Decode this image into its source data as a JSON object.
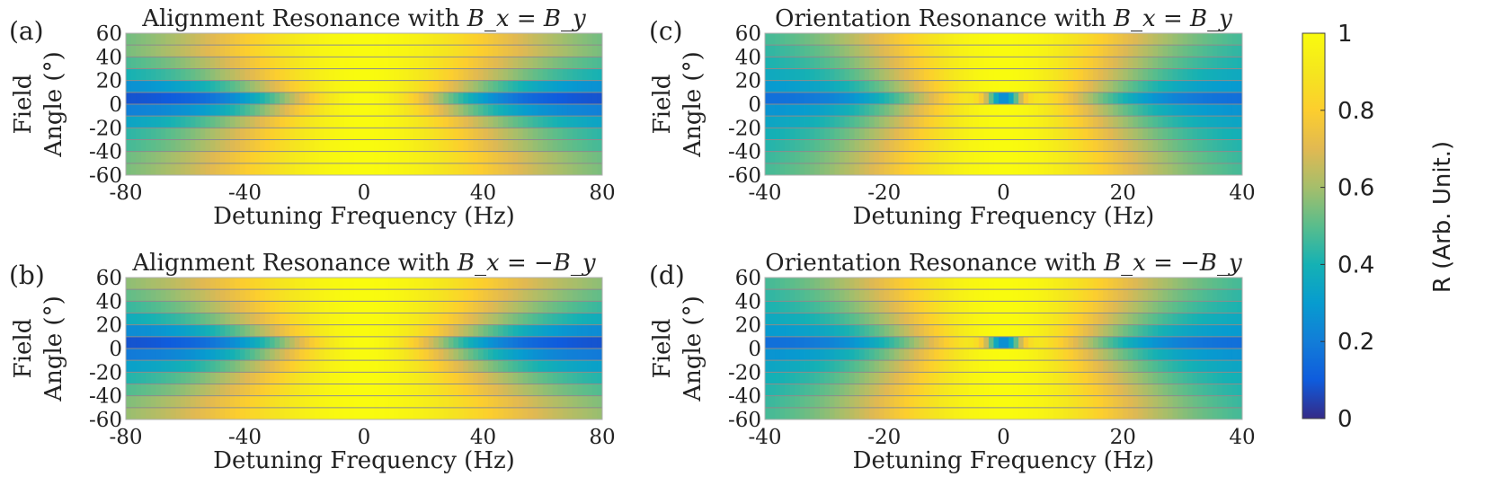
{
  "colorbar": {
    "label": "R (Arb. Unit.)",
    "ticks": [
      0,
      0.2,
      0.4,
      0.6,
      0.8,
      1
    ],
    "tick_labels": [
      "0",
      "0.2",
      "0.4",
      "0.6",
      "0.8",
      "1"
    ],
    "range": [
      0,
      1
    ]
  },
  "chart_data": [
    {
      "type": "heatmap",
      "panel_label": "(a)",
      "title_prefix": "Alignment Resonance with ",
      "title_math": "B_x = B_y",
      "xlabel": "Detuning Frequency (Hz)",
      "ylabel_line1": "Field",
      "ylabel_line2": "Angle (°)",
      "xlim": [
        -80,
        80
      ],
      "ylim": [
        -60,
        60
      ],
      "xticks": [
        -80,
        -40,
        0,
        40,
        80
      ],
      "xtick_labels": [
        "-80",
        "-40",
        "0",
        "40",
        "80"
      ],
      "yticks": [
        60,
        40,
        20,
        0,
        -20,
        -40,
        -60
      ],
      "ytick_labels": [
        "60",
        "40",
        "20",
        "0",
        "-20",
        "-40",
        "-60"
      ],
      "angles": [
        55,
        45,
        35,
        25,
        15,
        5,
        -5,
        -15,
        -25,
        -35,
        -45,
        -55
      ],
      "row_width_hz": [
        40,
        42,
        37,
        34,
        30,
        24,
        27,
        33,
        36,
        36,
        40,
        40
      ],
      "row_edge_value": [
        0.46,
        0.45,
        0.42,
        0.36,
        0.24,
        0.08,
        0.2,
        0.3,
        0.38,
        0.42,
        0.45,
        0.47
      ],
      "row_dip": [
        0,
        0,
        0,
        0,
        0,
        0,
        0,
        0,
        0,
        0,
        0,
        0
      ]
    },
    {
      "type": "heatmap",
      "panel_label": "(b)",
      "title_prefix": "Alignment Resonance with ",
      "title_math": "B_x = −B_y",
      "xlabel": "Detuning Frequency (Hz)",
      "ylabel_line1": "Field",
      "ylabel_line2": "Angle (°)",
      "xlim": [
        -80,
        80
      ],
      "ylim": [
        -60,
        60
      ],
      "xticks": [
        -80,
        -40,
        0,
        40,
        80
      ],
      "xtick_labels": [
        "-80",
        "-40",
        "0",
        "40",
        "80"
      ],
      "yticks": [
        60,
        40,
        20,
        0,
        -20,
        -40,
        -60
      ],
      "ytick_labels": [
        "60",
        "40",
        "20",
        "0",
        "-20",
        "-40",
        "-60"
      ],
      "angles": [
        55,
        45,
        35,
        25,
        15,
        5,
        -5,
        -15,
        -25,
        -35,
        -45,
        -55
      ],
      "row_width_hz": [
        40,
        38,
        36,
        33,
        30,
        24,
        27,
        30,
        34,
        36,
        40,
        42
      ],
      "row_edge_value": [
        0.5,
        0.45,
        0.4,
        0.34,
        0.22,
        0.08,
        0.18,
        0.3,
        0.38,
        0.44,
        0.48,
        0.5
      ],
      "row_dip": [
        0,
        0,
        0,
        0,
        0,
        0,
        0,
        0,
        0,
        0,
        0,
        0
      ]
    },
    {
      "type": "heatmap",
      "panel_label": "(c)",
      "title_prefix": "Orientation Resonance with ",
      "title_math": "B_x = B_y",
      "xlabel": "Detuning Frequency (Hz)",
      "ylabel_line1": "Field",
      "ylabel_line2": "Angle (°)",
      "xlim": [
        -40,
        40
      ],
      "ylim": [
        -60,
        60
      ],
      "xticks": [
        -40,
        -20,
        0,
        20,
        40
      ],
      "xtick_labels": [
        "-40",
        "-20",
        "0",
        "20",
        "40"
      ],
      "yticks": [
        60,
        40,
        20,
        0,
        -20,
        -40,
        -60
      ],
      "ytick_labels": [
        "60",
        "40",
        "20",
        "0",
        "-20",
        "-40",
        "-60"
      ],
      "angles": [
        55,
        45,
        35,
        25,
        15,
        5,
        -5,
        -15,
        -25,
        -35,
        -45,
        -55
      ],
      "row_width_hz": [
        18,
        17,
        16,
        15,
        14,
        13,
        14,
        15,
        16,
        17,
        18,
        18
      ],
      "row_edge_value": [
        0.42,
        0.4,
        0.38,
        0.34,
        0.28,
        0.15,
        0.26,
        0.32,
        0.36,
        0.38,
        0.4,
        0.42
      ],
      "row_dip": [
        0,
        0,
        0,
        0,
        0,
        0.75,
        0,
        0,
        0,
        0,
        0,
        0
      ]
    },
    {
      "type": "heatmap",
      "panel_label": "(d)",
      "title_prefix": "Orientation Resonance with ",
      "title_math": "B_x = −B_y",
      "xlabel": "Detuning Frequency (Hz)",
      "ylabel_line1": "Field",
      "ylabel_line2": "Angle (°)",
      "xlim": [
        -40,
        40
      ],
      "ylim": [
        -60,
        60
      ],
      "xticks": [
        -40,
        -20,
        0,
        20,
        40
      ],
      "xtick_labels": [
        "-40",
        "-20",
        "0",
        "20",
        "40"
      ],
      "yticks": [
        60,
        40,
        20,
        0,
        -20,
        -40,
        -60
      ],
      "ytick_labels": [
        "60",
        "40",
        "20",
        "0",
        "-20",
        "-40",
        "-60"
      ],
      "angles": [
        55,
        45,
        35,
        25,
        15,
        5,
        -5,
        -15,
        -25,
        -35,
        -45,
        -55
      ],
      "row_width_hz": [
        18,
        17,
        16,
        15,
        14,
        13,
        14,
        15,
        16,
        17,
        18,
        18
      ],
      "row_edge_value": [
        0.42,
        0.4,
        0.38,
        0.34,
        0.28,
        0.15,
        0.26,
        0.32,
        0.36,
        0.38,
        0.4,
        0.42
      ],
      "row_dip": [
        0,
        0,
        0,
        0,
        0,
        0.75,
        0,
        0,
        0,
        0,
        0,
        0
      ]
    }
  ]
}
